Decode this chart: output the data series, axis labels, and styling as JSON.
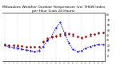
{
  "title": "Milwaukee Weather Outdoor Temperature (vs) THSW Index per Hour (Last 24 Hours)",
  "title_fontsize": 3.2,
  "background_color": "#ffffff",
  "grid_color": "#aaaaaa",
  "hours": [
    0,
    1,
    2,
    3,
    4,
    5,
    6,
    7,
    8,
    9,
    10,
    11,
    12,
    13,
    14,
    15,
    16,
    17,
    18,
    19,
    20,
    21,
    22,
    23
  ],
  "temp_outdoor": [
    22,
    21,
    20,
    20,
    19,
    18,
    18,
    17,
    18,
    28,
    35,
    38,
    40,
    42,
    43,
    44,
    42,
    38,
    36,
    38,
    42,
    43,
    45,
    46
  ],
  "thsw": [
    20,
    18,
    16,
    15,
    13,
    11,
    10,
    8,
    10,
    18,
    30,
    38,
    55,
    65,
    45,
    25,
    12,
    8,
    10,
    15,
    18,
    20,
    22,
    22
  ],
  "black_dots": [
    22,
    21,
    20,
    19,
    19,
    18,
    17,
    17,
    18,
    26,
    32,
    36,
    38,
    40,
    41,
    42,
    40,
    37,
    35,
    37,
    40,
    42,
    44,
    45
  ],
  "temp_color": "#cc0000",
  "thsw_color": "#0000ee",
  "dot_color": "#000000",
  "ylim_min": -10,
  "ylim_max": 85,
  "ytick_values": [
    0,
    10,
    20,
    30,
    40,
    50,
    60,
    70,
    80
  ],
  "ytick_labels": [
    "0",
    "10",
    "20",
    "30",
    "40",
    "50",
    "60",
    "70",
    "80"
  ],
  "xtick_hours": [
    0,
    1,
    2,
    3,
    4,
    5,
    6,
    7,
    8,
    9,
    10,
    11,
    12,
    13,
    14,
    15,
    16,
    17,
    18,
    19,
    20,
    21,
    22,
    23
  ]
}
